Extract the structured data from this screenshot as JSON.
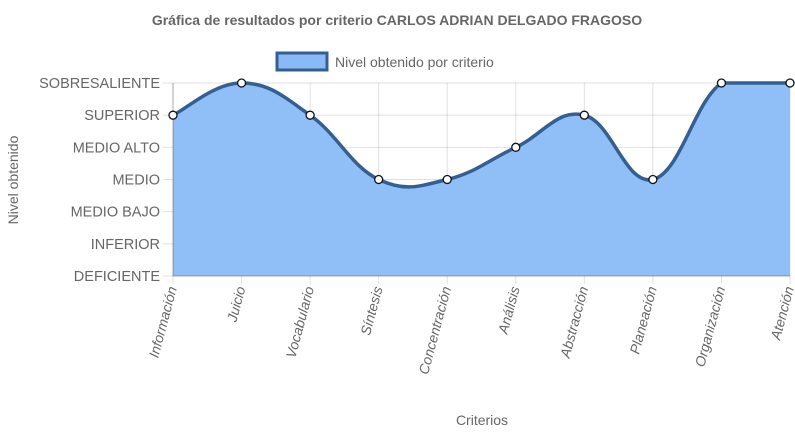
{
  "chart_data": {
    "type": "area",
    "title": "Gráfica de resultados por criterio CARLOS ADRIAN DELGADO FRAGOSO",
    "xlabel": "Criterios",
    "ylabel": "Nivel obtenido",
    "levels": [
      "DEFICIENTE",
      "INFERIOR",
      "MEDIO BAJO",
      "MEDIO",
      "MEDIO ALTO",
      "SUPERIOR",
      "SOBRESALIENTE"
    ],
    "ylim": [
      0,
      6
    ],
    "categories": [
      "Información",
      "Juicio",
      "Vocabulario",
      "Síntesis",
      "Concentración",
      "Análisis",
      "Abstracción",
      "Planeación",
      "Organización",
      "Atención"
    ],
    "series": [
      {
        "name": "Nivel obtenido por criterio",
        "values": [
          5,
          6,
          5,
          3,
          3,
          4,
          5,
          3,
          6,
          6
        ],
        "fill_color": "#8abaf5",
        "line_color": "#365f91",
        "point_fill": "#ffffff"
      }
    ],
    "grid": true,
    "legend_position": "top-center",
    "x_tick_rotation_deg": -75
  }
}
